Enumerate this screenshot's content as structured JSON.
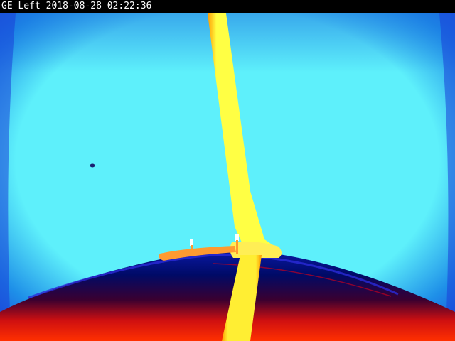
{
  "overlay": {
    "camera_label": "GE Left",
    "date": "2018-08-28",
    "time": "02:22:36"
  },
  "palette": {
    "sky_center": "#5ef0fb",
    "sky_edge": "#1e8fe8",
    "sky_deep_edge": "#1a3fd8",
    "horizon_band": "#0a1aa8",
    "horizon_dark": "#000a66",
    "warm_ground": "#d01010",
    "hot_ground": "#ff3000",
    "hot_object": "#ffff44",
    "hot_object_core": "#ffee33",
    "hot_object_edge": "#ff9a00"
  },
  "scene": {
    "type": "false-color thermal camera image",
    "features": [
      "sky",
      "wing-strut",
      "fuselage-surface",
      "antennas",
      "horizon",
      "bird-speck"
    ]
  }
}
